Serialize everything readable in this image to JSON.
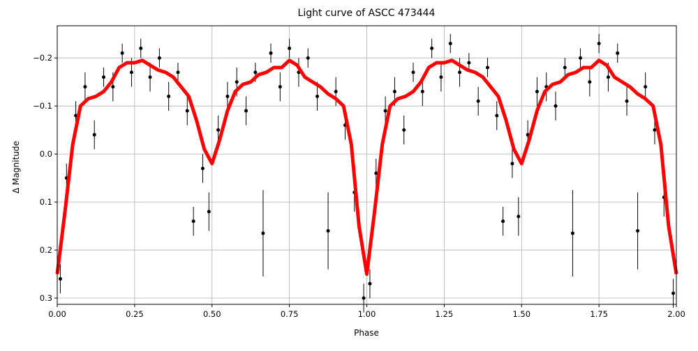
{
  "chart_data": {
    "type": "errorbar-line",
    "title": "Light curve of ASCC 473444",
    "x_label": "Phase",
    "y_label": "Δ Magnitude",
    "xlim": [
      0,
      2
    ],
    "ylim": [
      0.313,
      -0.267
    ],
    "grid": true,
    "xticks": [
      {
        "value": 0,
        "label": "0.00"
      },
      {
        "value": 0.25,
        "label": "0.25"
      },
      {
        "value": 0.5,
        "label": "0.50"
      },
      {
        "value": 0.75,
        "label": "0.75"
      },
      {
        "value": 1,
        "label": "1.00"
      },
      {
        "value": 1.25,
        "label": "1.25"
      },
      {
        "value": 1.5,
        "label": "1.50"
      },
      {
        "value": 1.75,
        "label": "1.75"
      },
      {
        "value": 2,
        "label": "2.00"
      }
    ],
    "yticks": [
      {
        "value": -0.2,
        "label": "−0.2"
      },
      {
        "value": -0.1,
        "label": "−0.1"
      },
      {
        "value": 0,
        "label": "0.0"
      },
      0.1,
      0.2,
      0.3
    ],
    "points": {
      "color": "#000000",
      "x": [
        0.01,
        0.03,
        0.06,
        0.09,
        0.12,
        0.15,
        0.18,
        0.21,
        0.24,
        0.27,
        0.3,
        0.33,
        0.36,
        0.39,
        0.42,
        0.44,
        0.47,
        0.49,
        0.52,
        0.55,
        0.58,
        0.61,
        0.64,
        0.665,
        0.69,
        0.72,
        0.75,
        0.78,
        0.81,
        0.84,
        0.875,
        0.9,
        0.93,
        0.96,
        0.99,
        1.01,
        1.03,
        1.06,
        1.09,
        1.12,
        1.15,
        1.18,
        1.21,
        1.24,
        1.27,
        1.3,
        1.33,
        1.36,
        1.39,
        1.42,
        1.44,
        1.47,
        1.49,
        1.52,
        1.55,
        1.58,
        1.61,
        1.64,
        1.665,
        1.69,
        1.72,
        1.75,
        1.78,
        1.81,
        1.84,
        1.875,
        1.9,
        1.93,
        1.96,
        1.99
      ],
      "y": [
        0.26,
        0.05,
        -0.08,
        -0.14,
        -0.04,
        -0.16,
        -0.14,
        -0.21,
        -0.17,
        -0.22,
        -0.16,
        -0.2,
        -0.12,
        -0.17,
        -0.09,
        0.14,
        0.03,
        0.12,
        -0.05,
        -0.12,
        -0.15,
        -0.09,
        -0.17,
        0.165,
        -0.21,
        -0.14,
        -0.22,
        -0.17,
        -0.2,
        -0.12,
        0.16,
        -0.13,
        -0.06,
        0.08,
        0.3,
        0.27,
        0.04,
        -0.09,
        -0.13,
        -0.05,
        -0.17,
        -0.13,
        -0.22,
        -0.16,
        -0.23,
        -0.17,
        -0.19,
        -0.11,
        -0.18,
        -0.08,
        0.14,
        0.02,
        0.13,
        -0.04,
        -0.13,
        -0.14,
        -0.1,
        -0.18,
        0.165,
        -0.2,
        -0.15,
        -0.23,
        -0.16,
        -0.21,
        -0.11,
        0.16,
        -0.14,
        -0.05,
        0.09,
        0.29
      ],
      "yerr": [
        0.03,
        0.03,
        0.03,
        0.03,
        0.03,
        0.02,
        0.03,
        0.02,
        0.03,
        0.02,
        0.03,
        0.02,
        0.03,
        0.02,
        0.03,
        0.03,
        0.03,
        0.04,
        0.03,
        0.03,
        0.03,
        0.03,
        0.02,
        0.09,
        0.02,
        0.03,
        0.02,
        0.03,
        0.02,
        0.03,
        0.08,
        0.03,
        0.03,
        0.04,
        0.03,
        0.03,
        0.03,
        0.03,
        0.03,
        0.03,
        0.02,
        0.03,
        0.02,
        0.03,
        0.02,
        0.03,
        0.02,
        0.03,
        0.02,
        0.03,
        0.03,
        0.03,
        0.04,
        0.03,
        0.03,
        0.03,
        0.03,
        0.02,
        0.09,
        0.02,
        0.03,
        0.02,
        0.03,
        0.02,
        0.03,
        0.08,
        0.03,
        0.03,
        0.04,
        0.03
      ]
    },
    "curve": {
      "color": "#ff0000",
      "x": [
        0,
        0.025,
        0.05,
        0.075,
        0.1,
        0.125,
        0.15,
        0.175,
        0.2,
        0.225,
        0.25,
        0.275,
        0.3,
        0.325,
        0.35,
        0.375,
        0.4,
        0.425,
        0.45,
        0.475,
        0.5,
        0.525,
        0.55,
        0.575,
        0.6,
        0.625,
        0.65,
        0.675,
        0.7,
        0.725,
        0.75,
        0.775,
        0.8,
        0.825,
        0.85,
        0.875,
        0.9,
        0.925,
        0.95,
        0.975,
        1,
        1.025,
        1.05,
        1.075,
        1.1,
        1.125,
        1.15,
        1.175,
        1.2,
        1.225,
        1.25,
        1.275,
        1.3,
        1.325,
        1.35,
        1.375,
        1.4,
        1.425,
        1.45,
        1.475,
        1.5,
        1.525,
        1.55,
        1.575,
        1.6,
        1.625,
        1.65,
        1.675,
        1.7,
        1.725,
        1.75,
        1.775,
        1.8,
        1.825,
        1.85,
        1.875,
        1.9,
        1.925,
        1.95,
        1.975,
        2
      ],
      "y": [
        0.25,
        0.12,
        -0.02,
        -0.1,
        -0.115,
        -0.12,
        -0.13,
        -0.15,
        -0.18,
        -0.19,
        -0.19,
        -0.195,
        -0.185,
        -0.175,
        -0.17,
        -0.16,
        -0.14,
        -0.12,
        -0.07,
        -0.01,
        0.02,
        -0.03,
        -0.09,
        -0.13,
        -0.145,
        -0.15,
        -0.165,
        -0.17,
        -0.18,
        -0.18,
        -0.195,
        -0.185,
        -0.16,
        -0.15,
        -0.14,
        -0.125,
        -0.115,
        -0.1,
        -0.02,
        0.15,
        0.25,
        0.12,
        -0.02,
        -0.1,
        -0.115,
        -0.12,
        -0.13,
        -0.15,
        -0.18,
        -0.19,
        -0.19,
        -0.195,
        -0.185,
        -0.175,
        -0.17,
        -0.16,
        -0.14,
        -0.12,
        -0.07,
        -0.01,
        0.02,
        -0.03,
        -0.09,
        -0.13,
        -0.145,
        -0.15,
        -0.165,
        -0.17,
        -0.18,
        -0.18,
        -0.195,
        -0.185,
        -0.16,
        -0.15,
        -0.14,
        -0.125,
        -0.115,
        -0.1,
        -0.02,
        0.15,
        0.25
      ]
    }
  }
}
